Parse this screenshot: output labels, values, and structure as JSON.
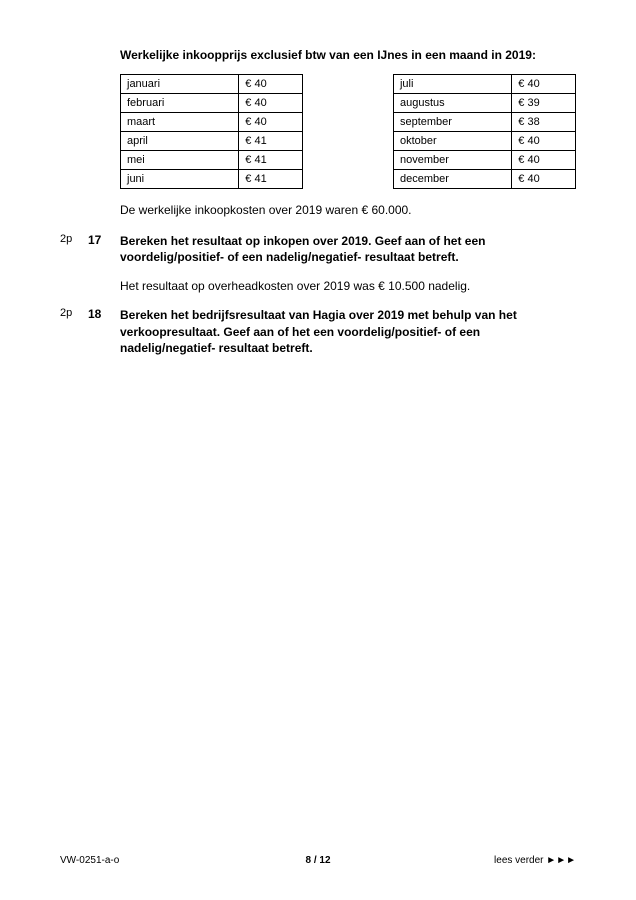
{
  "intro": "Werkelijke inkoopprijs exclusief btw van een IJnes in een maand in 2019:",
  "table": {
    "rows": [
      [
        "januari",
        "€ 40",
        "juli",
        "€ 40"
      ],
      [
        "februari",
        "€ 40",
        "augustus",
        "€ 39"
      ],
      [
        "maart",
        "€ 40",
        "september",
        "€ 38"
      ],
      [
        "april",
        "€ 41",
        "oktober",
        "€ 40"
      ],
      [
        "mei",
        "€ 41",
        "november",
        "€ 40"
      ],
      [
        "juni",
        "€ 41",
        "december",
        "€ 40"
      ]
    ]
  },
  "afterTable": "De werkelijke inkoopkosten over 2019 waren € 60.000.",
  "q17": {
    "pts": "2p",
    "num": "17",
    "text": "Bereken het resultaat op inkopen over 2019. Geef aan of het een voordelig/positief- of een nadelig/negatief- resultaat betreft."
  },
  "mid": "Het resultaat op overheadkosten over 2019 was € 10.500 nadelig.",
  "q18": {
    "pts": "2p",
    "num": "18",
    "text": "Bereken het bedrijfsresultaat van Hagia over 2019 met behulp van het verkoopresultaat. Geef aan of het een voordelig/positief- of een nadelig/negatief- resultaat betreft."
  },
  "footer": {
    "left": "VW-0251-a-o",
    "center": "8 / 12",
    "right": "lees verder ►►►"
  }
}
